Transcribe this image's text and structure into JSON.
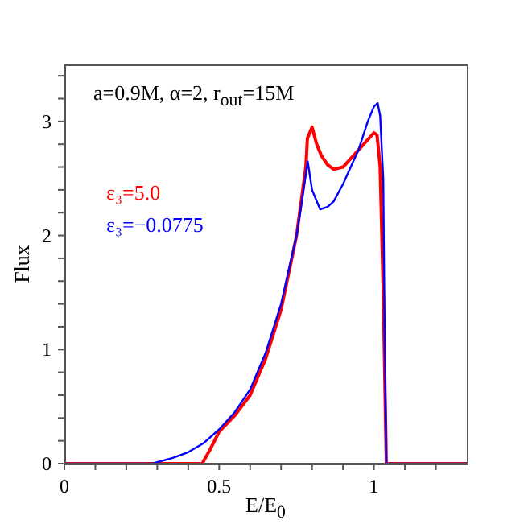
{
  "chart_data": {
    "type": "line",
    "xlabel": "E/E$_{0}$",
    "ylabel": "Flux",
    "annotations": [
      "a=0.9M, α=2, r$_{out}$=15M"
    ],
    "xlim": [
      0,
      1.3
    ],
    "ylim": [
      0,
      3.5
    ],
    "xticks": [
      0,
      {
        "value": 0.1,
        "label": null
      },
      {
        "value": 0.2,
        "label": null
      },
      {
        "value": 0.3,
        "label": null
      },
      {
        "value": 0.4,
        "label": null
      },
      0.5,
      {
        "value": 0.6,
        "label": null
      },
      {
        "value": 0.7,
        "label": null
      },
      {
        "value": 0.8,
        "label": null
      },
      {
        "value": 0.9,
        "label": null
      },
      1,
      {
        "value": 1.1,
        "label": null
      },
      {
        "value": 1.2,
        "label": null
      }
    ],
    "yticks": [
      0,
      {
        "value": 0.2,
        "label": null
      },
      {
        "value": 0.4,
        "label": null
      },
      {
        "value": 0.6,
        "label": null
      },
      {
        "value": 0.8,
        "label": null
      },
      1,
      {
        "value": 1.2,
        "label": null
      },
      {
        "value": 1.4,
        "label": null
      },
      {
        "value": 1.6,
        "label": null
      },
      {
        "value": 1.8,
        "label": null
      },
      2,
      {
        "value": 2.2,
        "label": null
      },
      {
        "value": 2.4,
        "label": null
      },
      {
        "value": 2.6,
        "label": null
      },
      {
        "value": 2.8,
        "label": null
      },
      3,
      {
        "value": 3.2,
        "label": null
      },
      {
        "value": 3.4,
        "label": null
      }
    ],
    "grid": false,
    "legend": "left",
    "marker": "none",
    "line_style": "solid",
    "series": [
      {
        "name": "ε₃=5.0",
        "color": "#ff0000",
        "x": [
          0,
          0.445,
          0.47,
          0.5,
          0.55,
          0.6,
          0.65,
          0.7,
          0.75,
          0.78,
          0.785,
          0.8,
          0.815,
          0.83,
          0.85,
          0.87,
          0.9,
          0.95,
          1.0,
          1.01,
          1.02,
          1.03,
          1.04,
          1.3
        ],
        "values": [
          0,
          0,
          0.12,
          0.28,
          0.42,
          0.6,
          0.92,
          1.35,
          2.0,
          2.6,
          2.85,
          2.95,
          2.8,
          2.7,
          2.62,
          2.58,
          2.6,
          2.75,
          2.9,
          2.88,
          2.6,
          1.5,
          0,
          0
        ]
      },
      {
        "name": "ε₃=−0.0775",
        "color": "#0000ff",
        "x": [
          0,
          0.283,
          0.35,
          0.4,
          0.45,
          0.5,
          0.55,
          0.6,
          0.65,
          0.7,
          0.75,
          0.77,
          0.786,
          0.8,
          0.826,
          0.85,
          0.87,
          0.9,
          0.95,
          0.98,
          1.0,
          1.012,
          1.02,
          1.03,
          1.035,
          1.04,
          1.3
        ],
        "values": [
          0,
          0,
          0.05,
          0.1,
          0.18,
          0.3,
          0.45,
          0.65,
          0.97,
          1.4,
          2.0,
          2.35,
          2.65,
          2.4,
          2.23,
          2.25,
          2.3,
          2.45,
          2.75,
          3.0,
          3.13,
          3.16,
          3.05,
          2.5,
          1.0,
          0,
          0
        ]
      }
    ]
  }
}
